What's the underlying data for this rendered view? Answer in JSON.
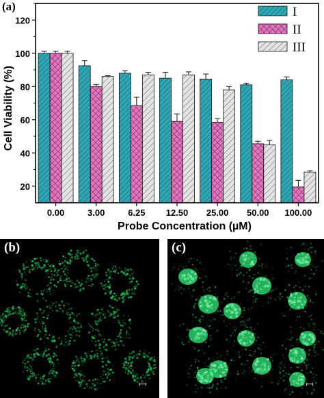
{
  "panel_a_label": "(a)",
  "panel_b_label": "(b)",
  "panel_c_label": "(c)",
  "chart_data": {
    "type": "bar",
    "xlabel": "Probe Concentration (µM)",
    "ylabel": "Cell Viability (%)",
    "ylim": [
      10,
      130
    ],
    "yticks": [
      20,
      40,
      60,
      80,
      100,
      120
    ],
    "categories": [
      "0.00",
      "3.00",
      "6.25",
      "12.50",
      "25.00",
      "50.00",
      "100.00"
    ],
    "legend_position": "top-right",
    "grid": false,
    "series": [
      {
        "name": "I",
        "pattern": "diagonal-hatch",
        "color": "#2fa6b3",
        "values": [
          100,
          92.5,
          88,
          85,
          84.5,
          81,
          84
        ],
        "errors": [
          1.2,
          3,
          1.5,
          3.5,
          3,
          1,
          1.8
        ]
      },
      {
        "name": "II",
        "pattern": "crosshatch",
        "color": "#e374be",
        "values": [
          100,
          80,
          68.5,
          59,
          58.5,
          45.5,
          19.5
        ],
        "errors": [
          1.2,
          1.2,
          5,
          4.5,
          2,
          1.5,
          4
        ]
      },
      {
        "name": "III",
        "pattern": "diagonal-hatch",
        "color": "#d4d4d4",
        "values": [
          100,
          86,
          87,
          87,
          78,
          45,
          28.5
        ],
        "errors": [
          1.2,
          0.5,
          1.5,
          1.8,
          2,
          2.5,
          0.8
        ]
      }
    ]
  },
  "microscopy": {
    "panel_b": {
      "stain": "sparse cytoplasmic green puncta",
      "color": "#22c25a"
    },
    "panel_c": {
      "stain": "bright green nuclear staining",
      "color": "#28d06a"
    }
  }
}
